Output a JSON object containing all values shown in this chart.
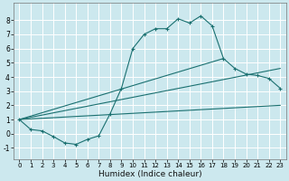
{
  "xlabel": "Humidex (Indice chaleur)",
  "background_color": "#cce8ee",
  "grid_color": "#ffffff",
  "line_color": "#1a7070",
  "xlim": [
    -0.5,
    23.5
  ],
  "ylim": [
    -1.8,
    9.2
  ],
  "xticks": [
    0,
    1,
    2,
    3,
    4,
    5,
    6,
    7,
    8,
    9,
    10,
    11,
    12,
    13,
    14,
    15,
    16,
    17,
    18,
    19,
    20,
    21,
    22,
    23
  ],
  "yticks": [
    -1,
    0,
    1,
    2,
    3,
    4,
    5,
    6,
    7,
    8
  ],
  "main_line_x": [
    0,
    1,
    2,
    3,
    4,
    5,
    6,
    7,
    8,
    9,
    10,
    11,
    12,
    13,
    14,
    15,
    16,
    17,
    18,
    19,
    20,
    21,
    22,
    23
  ],
  "main_line_y": [
    1.0,
    0.3,
    0.2,
    -0.2,
    -0.65,
    -0.75,
    -0.4,
    -0.15,
    1.4,
    3.2,
    6.0,
    7.0,
    7.4,
    7.4,
    8.1,
    7.8,
    8.3,
    7.6,
    5.3,
    4.6,
    4.2,
    4.1,
    3.9,
    3.2
  ],
  "line2_x": [
    0,
    23
  ],
  "line2_y": [
    1.0,
    2.0
  ],
  "line3_x": [
    0,
    23
  ],
  "line3_y": [
    1.0,
    4.6
  ],
  "line4_x": [
    0,
    18
  ],
  "line4_y": [
    1.0,
    5.3
  ]
}
